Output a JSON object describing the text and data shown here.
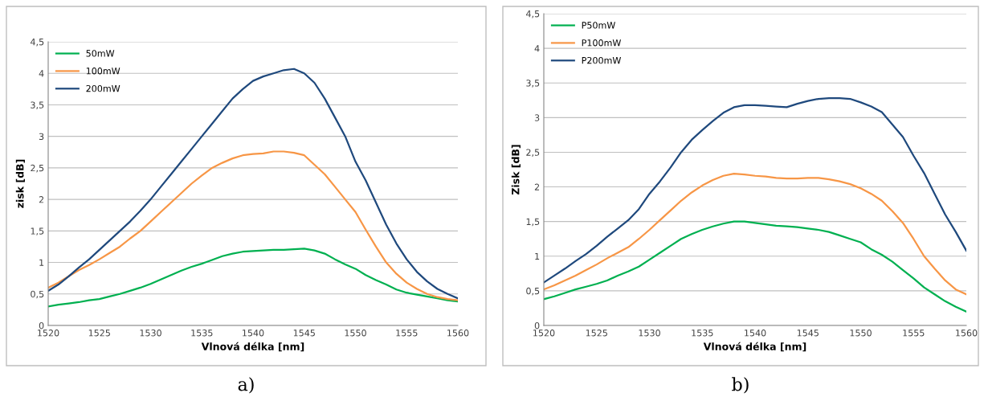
{
  "chart_data": [
    {
      "type": "line",
      "xlabel": "Vlnová délka [nm]",
      "ylabel": "zisk [dB]",
      "annotations": [
        "a)"
      ],
      "legend": "top left",
      "grid": "y",
      "marker": "none",
      "line_style": "solid",
      "x": [
        1520,
        1521,
        1522,
        1523,
        1524,
        1525,
        1526,
        1527,
        1528,
        1529,
        1530,
        1531,
        1532,
        1533,
        1534,
        1535,
        1536,
        1537,
        1538,
        1539,
        1540,
        1541,
        1542,
        1543,
        1544,
        1545,
        1546,
        1547,
        1548,
        1549,
        1550,
        1551,
        1552,
        1553,
        1554,
        1555,
        1556,
        1557,
        1558,
        1559,
        1560
      ],
      "xlim": [
        1520,
        1560
      ],
      "xticks": [
        1520,
        1525,
        1530,
        1535,
        1540,
        1545,
        1550,
        1555,
        1560
      ],
      "ylim": [
        0,
        4.5
      ],
      "yticks": [
        0,
        {
          "value": 0.5,
          "label": "0,5"
        },
        1,
        {
          "value": 1.5,
          "label": "1,5"
        },
        2,
        {
          "value": 2.5,
          "label": "2,5"
        },
        3,
        {
          "value": 3.5,
          "label": "3,5"
        },
        4,
        {
          "value": 4.5,
          "label": "4,5"
        }
      ],
      "series": [
        {
          "name": "50mW",
          "color": "#00b050",
          "values": [
            0.3,
            0.33,
            0.35,
            0.37,
            0.4,
            0.42,
            0.46,
            0.5,
            0.55,
            0.6,
            0.66,
            0.73,
            0.8,
            0.87,
            0.93,
            0.98,
            1.04,
            1.1,
            1.14,
            1.17,
            1.18,
            1.19,
            1.2,
            1.2,
            1.21,
            1.22,
            1.19,
            1.14,
            1.05,
            0.97,
            0.9,
            0.8,
            0.72,
            0.65,
            0.57,
            0.52,
            0.49,
            0.46,
            0.43,
            0.4,
            0.38
          ]
        },
        {
          "name": "100mW",
          "color": "#f79646",
          "values": [
            0.6,
            0.68,
            0.78,
            0.88,
            0.96,
            1.05,
            1.15,
            1.25,
            1.38,
            1.5,
            1.65,
            1.8,
            1.95,
            2.1,
            2.25,
            2.38,
            2.5,
            2.58,
            2.65,
            2.7,
            2.72,
            2.73,
            2.76,
            2.76,
            2.74,
            2.7,
            2.55,
            2.4,
            2.2,
            2.0,
            1.8,
            1.52,
            1.25,
            1.0,
            0.82,
            0.68,
            0.58,
            0.5,
            0.45,
            0.42,
            0.4
          ]
        },
        {
          "name": "200mW",
          "color": "#1f497d",
          "values": [
            0.55,
            0.65,
            0.78,
            0.92,
            1.05,
            1.2,
            1.35,
            1.5,
            1.65,
            1.82,
            2.0,
            2.2,
            2.4,
            2.6,
            2.8,
            3.0,
            3.2,
            3.4,
            3.6,
            3.75,
            3.88,
            3.95,
            4.0,
            4.05,
            4.07,
            4.0,
            3.85,
            3.6,
            3.3,
            3.0,
            2.6,
            2.3,
            1.95,
            1.6,
            1.3,
            1.05,
            0.85,
            0.7,
            0.58,
            0.5,
            0.43
          ]
        }
      ]
    },
    {
      "type": "line",
      "xlabel": "Vlnová délka [nm]",
      "ylabel": "Zisk [dB]",
      "annotations": [
        "b)"
      ],
      "legend": "top left",
      "grid": "y",
      "marker": "none",
      "line_style": "solid",
      "x": [
        1520,
        1521,
        1522,
        1523,
        1524,
        1525,
        1526,
        1527,
        1528,
        1529,
        1530,
        1531,
        1532,
        1533,
        1534,
        1535,
        1536,
        1537,
        1538,
        1539,
        1540,
        1541,
        1542,
        1543,
        1544,
        1545,
        1546,
        1547,
        1548,
        1549,
        1550,
        1551,
        1552,
        1553,
        1554,
        1555,
        1556,
        1557,
        1558,
        1559,
        1560
      ],
      "xlim": [
        1520,
        1560
      ],
      "xticks": [
        1520,
        1525,
        1530,
        1535,
        1540,
        1545,
        1550,
        1555,
        1560
      ],
      "ylim": [
        0,
        4.5
      ],
      "yticks": [
        0,
        {
          "value": 0.5,
          "label": "0,5"
        },
        1,
        {
          "value": 1.5,
          "label": "1,5"
        },
        2,
        {
          "value": 2.5,
          "label": "2,5"
        },
        3,
        {
          "value": 3.5,
          "label": "3,5"
        },
        4,
        {
          "value": 4.5,
          "label": "4,5"
        }
      ],
      "series": [
        {
          "name": "P50mW",
          "color": "#00b050",
          "values": [
            0.38,
            0.42,
            0.47,
            0.52,
            0.56,
            0.6,
            0.65,
            0.72,
            0.78,
            0.85,
            0.95,
            1.05,
            1.15,
            1.25,
            1.32,
            1.38,
            1.43,
            1.47,
            1.5,
            1.5,
            1.48,
            1.46,
            1.44,
            1.43,
            1.42,
            1.4,
            1.38,
            1.35,
            1.3,
            1.25,
            1.2,
            1.1,
            1.02,
            0.92,
            0.8,
            0.68,
            0.55,
            0.45,
            0.35,
            0.27,
            0.2
          ]
        },
        {
          "name": "P100mW",
          "color": "#f79646",
          "values": [
            0.52,
            0.58,
            0.65,
            0.72,
            0.8,
            0.88,
            0.97,
            1.05,
            1.13,
            1.25,
            1.38,
            1.52,
            1.66,
            1.8,
            1.92,
            2.02,
            2.1,
            2.16,
            2.19,
            2.18,
            2.16,
            2.15,
            2.13,
            2.12,
            2.12,
            2.13,
            2.13,
            2.11,
            2.08,
            2.04,
            1.98,
            1.9,
            1.8,
            1.65,
            1.48,
            1.25,
            1.0,
            0.82,
            0.65,
            0.52,
            0.45
          ]
        },
        {
          "name": "P200mW",
          "color": "#1f497d",
          "values": [
            0.62,
            0.72,
            0.82,
            0.93,
            1.03,
            1.15,
            1.28,
            1.4,
            1.52,
            1.68,
            1.9,
            2.08,
            2.28,
            2.5,
            2.68,
            2.82,
            2.95,
            3.07,
            3.15,
            3.18,
            3.18,
            3.17,
            3.16,
            3.15,
            3.2,
            3.24,
            3.27,
            3.28,
            3.28,
            3.27,
            3.22,
            3.16,
            3.08,
            2.9,
            2.72,
            2.45,
            2.2,
            1.9,
            1.6,
            1.35,
            1.08
          ]
        }
      ]
    }
  ]
}
